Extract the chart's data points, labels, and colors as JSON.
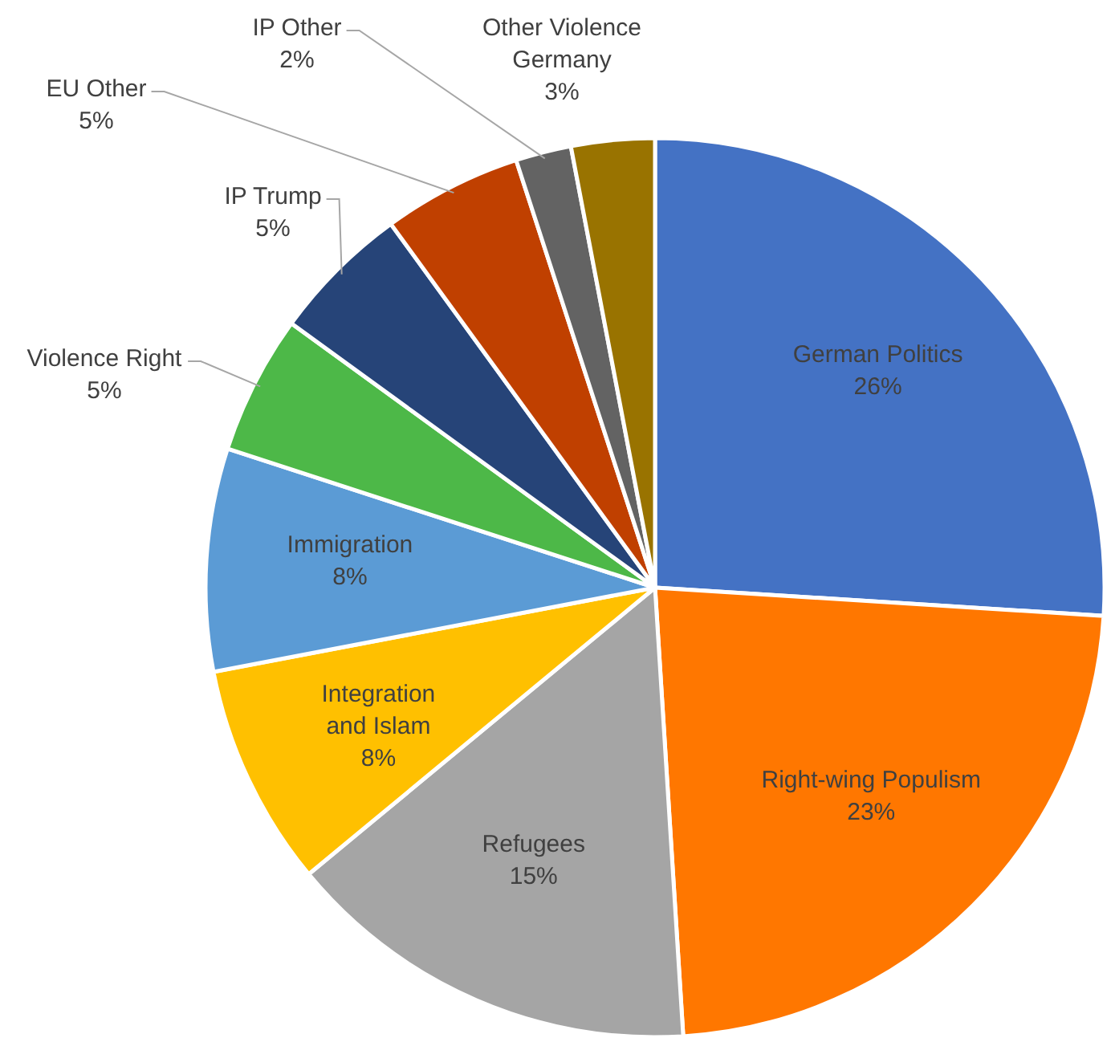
{
  "chart_data": {
    "type": "pie",
    "categories": [
      "German Politics",
      "Right-wing Populism",
      "Refugees",
      "Integration and Islam",
      "Immigration",
      "Violence Right",
      "IP Trump",
      "EU Other",
      "IP Other",
      "Other Violence Germany"
    ],
    "values": [
      26,
      23,
      15,
      8,
      8,
      5,
      5,
      5,
      2,
      3
    ],
    "value_labels": [
      "26%",
      "23%",
      "15%",
      "8%",
      "8%",
      "5%",
      "5%",
      "5%",
      "2%",
      "3%"
    ],
    "colors": [
      "#4472c4",
      "#ff7700",
      "#a5a5a5",
      "#ffc000",
      "#5b9bd5",
      "#4db848",
      "#264478",
      "#c04000",
      "#636363",
      "#997300"
    ]
  }
}
